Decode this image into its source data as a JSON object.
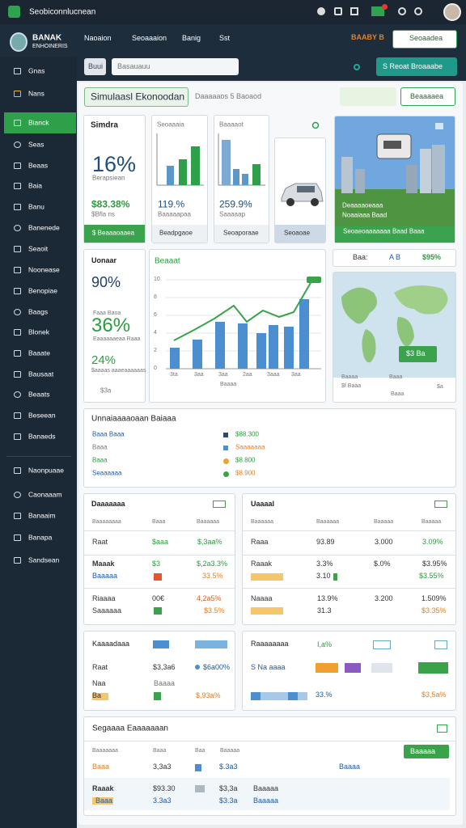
{
  "topbar": {
    "title": "Seobiconnlucnean"
  },
  "header": {
    "brand": "BANAK",
    "brand_sub": "ENHOINERIS",
    "nav": [
      "Naoaion",
      "Seoaaaion",
      "Banig",
      "Sst"
    ],
    "highlight": "BAABY B",
    "button": "Seoaadea",
    "search_label": "Buui",
    "search_placeholder": "Basauauu",
    "action": "S Reoat Broaaabe"
  },
  "sidebar": {
    "items": [
      "Gnas",
      "Nans",
      "Bianck",
      "Seas",
      "Beaas",
      "Baia",
      "Banu",
      "Banenede",
      "Seaoit",
      "Noonease",
      "Benopiae",
      "Baags",
      "Blonek",
      "Baaate",
      "Bausaat",
      "Beaats",
      "Beseean",
      "Banaeds",
      "Naonpuaae",
      "Caonaaam",
      "Banaaim",
      "Banapa",
      "Sandsean"
    ]
  },
  "page": {
    "title": "Simulaasl Ekonoodan",
    "subtitle": "Daaaaaos  5 Baoaod",
    "button": "Beaaaaea"
  },
  "stats": [
    {
      "title": "Simdra",
      "value": "16%",
      "label": "Berapsiean",
      "amount": "$83.38%",
      "note": "$Bfla ns",
      "footer": "$ Beaaaoaaea"
    },
    {
      "title": "Seoaaaia",
      "amount": "119.%",
      "note": "Baaaaapaa",
      "footer": "Beadpgaoe"
    },
    {
      "title": "Baaaaot",
      "amount": "259.9%",
      "note": "Saaaaap",
      "footer": "Seoaporaae"
    },
    {
      "footer": "Seoaoae"
    },
    {
      "caption": "Deaaaaoeaaa",
      "caption2": "Noaaiaaa Baad",
      "footer": "Seoaeoaaaaaaa Baad Baaa"
    }
  ],
  "rates": {
    "title": "Uonaar",
    "value1": "90%",
    "label1": "Faaa Baoa",
    "value2": "36%",
    "label2": "Eaaaaaaeaa Raaa",
    "value3": "24%",
    "label3": "$aaaas aaaeaaaaaas",
    "note": "$3a"
  },
  "trend": {
    "title": "Beaaat",
    "yaxis": [
      "10",
      "8",
      "6",
      "4",
      "2",
      "0"
    ],
    "xaxis": [
      "3ta",
      "3aa",
      "3aa",
      "2aa",
      "3aaa",
      "3aa"
    ],
    "caption": "Baaaa"
  },
  "map": {
    "label": "Baa:",
    "code": "A B",
    "value": "$95%",
    "button": "$3 Ba",
    "legend": [
      "Baaaa",
      "$f Baaa",
      "Baaa",
      "Baaa",
      "$a"
    ]
  },
  "summary": {
    "title": "Unnaiaaaaoaan Baiaaa",
    "items": [
      "Baaa Baaa",
      "Baaa",
      "Baaa",
      "Seaaaaaa"
    ],
    "values": [
      "$88.300",
      "Saaaaaaa",
      "$8.800",
      "$8.900"
    ]
  },
  "table1": {
    "title": "Daaaaaaa",
    "header": [
      "Baaaaaaaa",
      "Baaa",
      "Baaaaaa"
    ],
    "rows": [
      [
        "Raat",
        "$aaa",
        "$,3aa%"
      ],
      [
        "Maaak",
        "$3",
        "$,2a3.3%"
      ],
      [
        "Baaaaa",
        "33.5%"
      ],
      [
        "Riaaaa",
        "00€",
        "4,2a5%"
      ],
      [
        "Saaaaaa",
        "$3.5%"
      ]
    ]
  },
  "table2": {
    "title": "Uaaaal",
    "header": [
      "Baaaaaa",
      "Baaaaaa",
      "Baaaaa",
      "Baaaaa"
    ],
    "rows": [
      [
        "Raaa",
        "93.89",
        "3.000",
        "3.09%"
      ],
      [
        "Raaak",
        "3.3%",
        "$.0%",
        "$3.95%"
      ],
      [
        "3.10",
        "$3.55%"
      ],
      [
        "Naaaa",
        "13.9%",
        "3.200",
        "1.509%"
      ],
      [
        "31.3",
        "$3.35%"
      ]
    ]
  },
  "card_a": {
    "title": "Kaaaadaaa",
    "rows": [
      [
        "Raat",
        "$3,3a6",
        "$6a00%"
      ],
      [
        "Naa",
        "Baaaa"
      ],
      [
        "Ba",
        "$,93a%"
      ]
    ]
  },
  "card_b": {
    "title": "Raaaaaaaa",
    "chip": "I,a%",
    "rows": [
      [
        "S Na aaaa"
      ],
      [
        "33.%",
        "$3,5a%"
      ]
    ]
  },
  "table3": {
    "title": "Segaaaa Eaaaaaaan",
    "button": "Baaaaa",
    "header": [
      "Baaaaaaa",
      "Baaa",
      "Baa",
      "Baaaaa"
    ],
    "rows": [
      [
        "Baaa",
        "3,3a3",
        "$.3a3",
        "Baaaa"
      ],
      [
        "Raaak",
        "$93.30",
        "$3,3a",
        "Baaaaa"
      ],
      [
        "Baaa",
        "3.3a3",
        "$3.3a",
        "Baaaaa"
      ]
    ]
  }
}
